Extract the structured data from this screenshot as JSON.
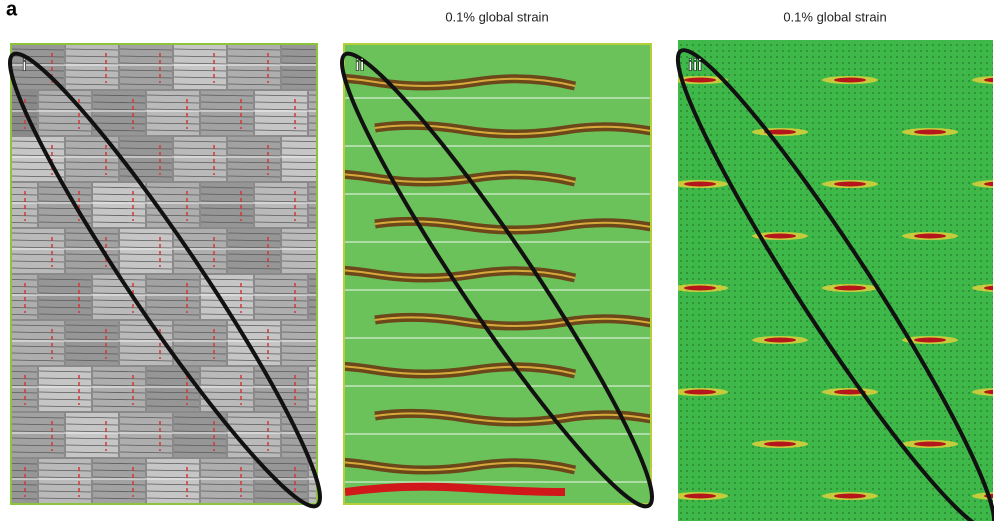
{
  "figure_label": "a",
  "panels": [
    {
      "label": "i"
    },
    {
      "label": "ii",
      "caption": "0.1% global strain"
    },
    {
      "label": "iii",
      "caption": "0.1% global strain"
    }
  ]
}
